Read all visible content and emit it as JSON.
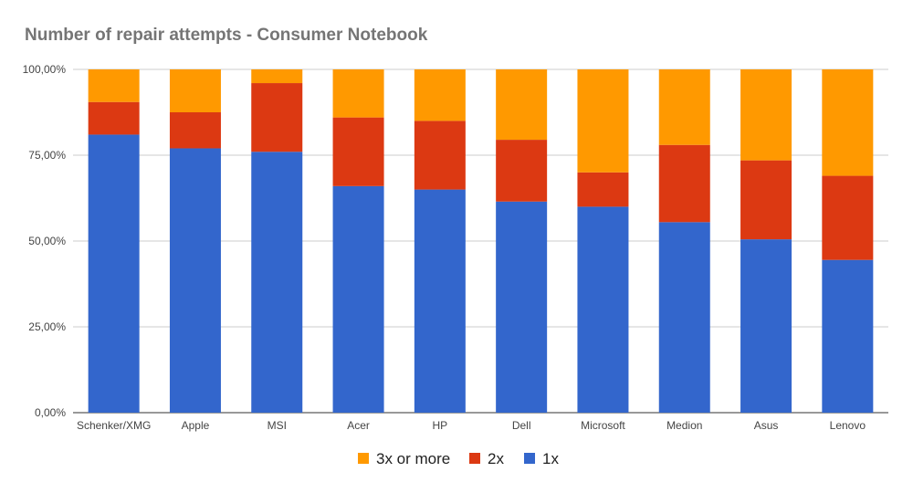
{
  "chart_data": {
    "type": "bar",
    "stacked": true,
    "title": "Number of repair attempts - Consumer Notebook",
    "xlabel": "",
    "ylabel": "",
    "categories": [
      "Schenker/XMG",
      "Apple",
      "MSI",
      "Acer",
      "HP",
      "Dell",
      "Microsoft",
      "Medion",
      "Asus",
      "Lenovo"
    ],
    "ylim": [
      0,
      100
    ],
    "yticks": [
      0,
      25,
      50,
      75,
      100
    ],
    "ytick_labels": [
      "0,00%",
      "25,00%",
      "50,00%",
      "75,00%",
      "100,00%"
    ],
    "grid": true,
    "legend_position": "bottom",
    "series": [
      {
        "name": "1x",
        "color": "#3366cc",
        "values": [
          81,
          77,
          76,
          66,
          65,
          61.5,
          60,
          55.5,
          50.5,
          44.5
        ]
      },
      {
        "name": "2x",
        "color": "#dc3912",
        "values": [
          9.5,
          10.5,
          20,
          20,
          20,
          18,
          10,
          22.5,
          23,
          24.5
        ]
      },
      {
        "name": "3x or more",
        "color": "#ff9900",
        "values": [
          9.5,
          12.5,
          4,
          14,
          15,
          20.5,
          30,
          22,
          26.5,
          31
        ]
      }
    ],
    "legend_order": [
      "3x or more",
      "2x",
      "1x"
    ]
  }
}
